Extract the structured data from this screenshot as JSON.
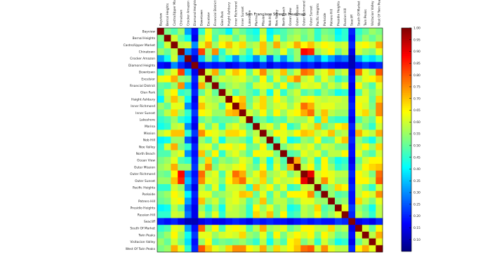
{
  "chart_data": {
    "type": "heatmap",
    "title": "San Francisco Streets Heatmap",
    "xlabel": "",
    "ylabel": "",
    "labels": [
      "Bayview",
      "Bernal Heights",
      "Castro/Upper Market",
      "Chinatown",
      "Crocker Amazon",
      "Diamond Heights",
      "Downtown",
      "Excelsior",
      "Financial District",
      "Glen Park",
      "Haight Ashbury",
      "Inner Richmond",
      "Inner Sunset",
      "Lakeshore",
      "Marina",
      "Mission",
      "Nob Hill",
      "Noe Valley",
      "North Beach",
      "Ocean View",
      "Outer Mission",
      "Outer Richmond",
      "Outer Sunset",
      "Pacific Heights",
      "Parkside",
      "Potrero Hill",
      "Presidio Heights",
      "Russian Hill",
      "Seacliff",
      "South Of Market",
      "Twin Peaks",
      "Visitacion Valley",
      "West Of Twin Peaks"
    ],
    "colorbar": {
      "min": 0.05,
      "max": 1.0,
      "ticks": [
        "1.00",
        "0.95",
        "0.90",
        "0.85",
        "0.80",
        "0.75",
        "0.70",
        "0.65",
        "0.60",
        "0.55",
        "0.50",
        "0.45",
        "0.40",
        "0.35",
        "0.30",
        "0.25",
        "0.20",
        "0.15",
        "0.10"
      ],
      "tick_values": [
        1.0,
        0.95,
        0.9,
        0.85,
        0.8,
        0.75,
        0.7,
        0.65,
        0.6,
        0.55,
        0.5,
        0.45,
        0.4,
        0.35,
        0.3,
        0.25,
        0.2,
        0.15,
        0.1
      ],
      "colormap": "jet"
    },
    "values": [
      [
        1.0,
        0.52,
        0.48,
        0.55,
        0.32,
        0.18,
        0.45,
        0.62,
        0.5,
        0.48,
        0.4,
        0.55,
        0.5,
        0.45,
        0.42,
        0.58,
        0.4,
        0.45,
        0.48,
        0.52,
        0.55,
        0.52,
        0.55,
        0.45,
        0.52,
        0.5,
        0.4,
        0.45,
        0.2,
        0.45,
        0.5,
        0.55,
        0.52
      ],
      [
        0.52,
        1.0,
        0.6,
        0.5,
        0.42,
        0.15,
        0.55,
        0.65,
        0.48,
        0.6,
        0.58,
        0.5,
        0.58,
        0.48,
        0.45,
        0.62,
        0.42,
        0.6,
        0.48,
        0.55,
        0.58,
        0.5,
        0.55,
        0.45,
        0.55,
        0.52,
        0.42,
        0.45,
        0.18,
        0.48,
        0.55,
        0.5,
        0.55
      ],
      [
        0.48,
        0.6,
        1.0,
        0.58,
        0.6,
        0.3,
        0.62,
        0.72,
        0.55,
        0.65,
        0.7,
        0.62,
        0.68,
        0.55,
        0.58,
        0.7,
        0.55,
        0.72,
        0.58,
        0.62,
        0.72,
        0.65,
        0.7,
        0.6,
        0.65,
        0.62,
        0.58,
        0.6,
        0.2,
        0.62,
        0.65,
        0.6,
        0.72
      ],
      [
        0.55,
        0.5,
        0.58,
        1.0,
        0.3,
        0.2,
        0.82,
        0.55,
        0.75,
        0.45,
        0.58,
        0.62,
        0.55,
        0.45,
        0.6,
        0.7,
        0.55,
        0.52,
        0.62,
        0.48,
        0.55,
        0.88,
        0.85,
        0.55,
        0.6,
        0.65,
        0.5,
        0.58,
        0.15,
        0.6,
        0.55,
        0.52,
        0.62
      ],
      [
        0.32,
        0.42,
        0.6,
        0.3,
        1.0,
        0.12,
        0.35,
        0.52,
        0.35,
        0.48,
        0.42,
        0.3,
        0.45,
        0.4,
        0.3,
        0.45,
        0.25,
        0.45,
        0.3,
        0.45,
        0.55,
        0.3,
        0.35,
        0.28,
        0.4,
        0.32,
        0.25,
        0.28,
        0.1,
        0.32,
        0.42,
        0.38,
        0.45
      ],
      [
        0.18,
        0.15,
        0.3,
        0.2,
        0.12,
        1.0,
        0.15,
        0.2,
        0.18,
        0.2,
        0.15,
        0.18,
        0.22,
        0.18,
        0.15,
        0.22,
        0.15,
        0.2,
        0.18,
        0.2,
        0.22,
        0.18,
        0.2,
        0.15,
        0.2,
        0.18,
        0.15,
        0.15,
        0.1,
        0.18,
        0.22,
        0.18,
        0.2
      ],
      [
        0.45,
        0.55,
        0.62,
        0.82,
        0.35,
        0.15,
        1.0,
        0.6,
        0.72,
        0.5,
        0.62,
        0.7,
        0.65,
        0.5,
        0.62,
        0.75,
        0.55,
        0.6,
        0.7,
        0.52,
        0.6,
        0.78,
        0.75,
        0.58,
        0.62,
        0.7,
        0.55,
        0.6,
        0.15,
        0.78,
        0.62,
        0.55,
        0.8
      ],
      [
        0.62,
        0.65,
        0.72,
        0.55,
        0.52,
        0.2,
        0.6,
        1.0,
        0.55,
        0.6,
        0.58,
        0.6,
        0.62,
        0.55,
        0.5,
        0.65,
        0.48,
        0.62,
        0.52,
        0.68,
        0.75,
        0.58,
        0.62,
        0.5,
        0.62,
        0.55,
        0.45,
        0.5,
        0.18,
        0.55,
        0.62,
        0.65,
        0.7
      ],
      [
        0.5,
        0.48,
        0.55,
        0.75,
        0.35,
        0.18,
        0.72,
        0.55,
        1.0,
        0.5,
        0.55,
        0.58,
        0.55,
        0.48,
        0.6,
        0.62,
        0.6,
        0.5,
        0.65,
        0.48,
        0.52,
        0.62,
        0.6,
        0.62,
        0.52,
        0.6,
        0.55,
        0.62,
        0.15,
        0.65,
        0.55,
        0.48,
        0.62
      ],
      [
        0.48,
        0.6,
        0.65,
        0.45,
        0.48,
        0.2,
        0.5,
        0.6,
        0.5,
        1.0,
        0.58,
        0.48,
        0.55,
        0.5,
        0.45,
        0.58,
        0.42,
        0.62,
        0.45,
        0.55,
        0.6,
        0.48,
        0.52,
        0.45,
        0.55,
        0.5,
        0.42,
        0.45,
        0.15,
        0.48,
        0.6,
        0.52,
        0.58
      ],
      [
        0.4,
        0.58,
        0.7,
        0.58,
        0.42,
        0.15,
        0.62,
        0.58,
        0.55,
        0.58,
        1.0,
        0.65,
        0.7,
        0.5,
        0.58,
        0.68,
        0.55,
        0.65,
        0.58,
        0.52,
        0.58,
        0.62,
        0.65,
        0.6,
        0.58,
        0.6,
        0.6,
        0.58,
        0.18,
        0.62,
        0.62,
        0.5,
        0.68
      ],
      [
        0.55,
        0.5,
        0.62,
        0.62,
        0.3,
        0.18,
        0.7,
        0.6,
        0.58,
        0.48,
        0.65,
        1.0,
        0.72,
        0.52,
        0.62,
        0.68,
        0.55,
        0.6,
        0.62,
        0.55,
        0.62,
        0.78,
        0.72,
        0.6,
        0.62,
        0.62,
        0.58,
        0.58,
        0.2,
        0.65,
        0.6,
        0.52,
        0.75
      ],
      [
        0.5,
        0.58,
        0.68,
        0.55,
        0.45,
        0.22,
        0.65,
        0.62,
        0.55,
        0.55,
        0.7,
        0.72,
        1.0,
        0.6,
        0.55,
        0.65,
        0.52,
        0.65,
        0.55,
        0.62,
        0.65,
        0.72,
        0.78,
        0.58,
        0.7,
        0.58,
        0.55,
        0.55,
        0.18,
        0.62,
        0.68,
        0.55,
        0.75
      ],
      [
        0.45,
        0.48,
        0.55,
        0.45,
        0.4,
        0.18,
        0.5,
        0.55,
        0.48,
        0.5,
        0.5,
        0.52,
        0.6,
        1.0,
        0.48,
        0.52,
        0.45,
        0.5,
        0.48,
        0.58,
        0.55,
        0.55,
        0.62,
        0.45,
        0.68,
        0.48,
        0.45,
        0.45,
        0.15,
        0.48,
        0.55,
        0.5,
        0.65
      ],
      [
        0.42,
        0.45,
        0.58,
        0.6,
        0.3,
        0.15,
        0.62,
        0.5,
        0.6,
        0.45,
        0.58,
        0.62,
        0.55,
        0.48,
        1.0,
        0.58,
        0.62,
        0.52,
        0.65,
        0.45,
        0.5,
        0.62,
        0.58,
        0.7,
        0.5,
        0.55,
        0.65,
        0.68,
        0.2,
        0.58,
        0.52,
        0.45,
        0.6
      ],
      [
        0.58,
        0.62,
        0.7,
        0.7,
        0.45,
        0.22,
        0.75,
        0.65,
        0.62,
        0.58,
        0.68,
        0.68,
        0.65,
        0.52,
        0.58,
        1.0,
        0.55,
        0.65,
        0.62,
        0.58,
        0.65,
        0.7,
        0.68,
        0.58,
        0.62,
        0.7,
        0.55,
        0.58,
        0.18,
        0.72,
        0.62,
        0.58,
        0.72
      ],
      [
        0.4,
        0.42,
        0.55,
        0.55,
        0.25,
        0.15,
        0.55,
        0.48,
        0.6,
        0.42,
        0.55,
        0.55,
        0.52,
        0.45,
        0.62,
        0.55,
        1.0,
        0.48,
        0.62,
        0.42,
        0.45,
        0.55,
        0.52,
        0.65,
        0.48,
        0.5,
        0.62,
        0.7,
        0.2,
        0.55,
        0.48,
        0.42,
        0.55
      ],
      [
        0.45,
        0.6,
        0.72,
        0.52,
        0.45,
        0.2,
        0.6,
        0.62,
        0.5,
        0.62,
        0.65,
        0.6,
        0.65,
        0.5,
        0.52,
        0.65,
        0.48,
        1.0,
        0.52,
        0.58,
        0.62,
        0.58,
        0.62,
        0.52,
        0.6,
        0.58,
        0.52,
        0.52,
        0.18,
        0.58,
        0.65,
        0.55,
        0.68
      ],
      [
        0.48,
        0.48,
        0.58,
        0.62,
        0.3,
        0.18,
        0.7,
        0.52,
        0.65,
        0.45,
        0.58,
        0.62,
        0.55,
        0.48,
        0.65,
        0.62,
        0.62,
        0.52,
        1.0,
        0.48,
        0.5,
        0.62,
        0.58,
        0.62,
        0.5,
        0.58,
        0.58,
        0.65,
        0.18,
        0.62,
        0.52,
        0.48,
        0.6
      ],
      [
        0.52,
        0.55,
        0.62,
        0.48,
        0.45,
        0.2,
        0.52,
        0.68,
        0.48,
        0.55,
        0.52,
        0.55,
        0.62,
        0.58,
        0.45,
        0.58,
        0.42,
        0.58,
        0.48,
        1.0,
        0.72,
        0.52,
        0.6,
        0.45,
        0.65,
        0.5,
        0.42,
        0.45,
        0.15,
        0.5,
        0.6,
        0.65,
        0.65
      ],
      [
        0.55,
        0.58,
        0.72,
        0.55,
        0.55,
        0.22,
        0.6,
        0.75,
        0.52,
        0.6,
        0.58,
        0.62,
        0.65,
        0.55,
        0.5,
        0.65,
        0.45,
        0.62,
        0.5,
        0.72,
        1.0,
        0.58,
        0.65,
        0.48,
        0.65,
        0.55,
        0.45,
        0.48,
        0.18,
        0.55,
        0.65,
        0.68,
        0.7
      ],
      [
        0.52,
        0.5,
        0.65,
        0.88,
        0.3,
        0.18,
        0.78,
        0.58,
        0.62,
        0.48,
        0.62,
        0.78,
        0.72,
        0.55,
        0.62,
        0.7,
        0.55,
        0.58,
        0.62,
        0.52,
        0.58,
        1.0,
        0.9,
        0.6,
        0.65,
        0.62,
        0.58,
        0.58,
        0.2,
        0.65,
        0.6,
        0.52,
        0.78
      ],
      [
        0.55,
        0.55,
        0.7,
        0.85,
        0.35,
        0.2,
        0.75,
        0.62,
        0.6,
        0.52,
        0.65,
        0.72,
        0.78,
        0.62,
        0.58,
        0.68,
        0.52,
        0.62,
        0.58,
        0.6,
        0.65,
        0.9,
        1.0,
        0.58,
        0.75,
        0.62,
        0.55,
        0.55,
        0.18,
        0.65,
        0.65,
        0.58,
        0.8
      ],
      [
        0.45,
        0.45,
        0.6,
        0.55,
        0.28,
        0.15,
        0.58,
        0.5,
        0.62,
        0.45,
        0.6,
        0.6,
        0.58,
        0.45,
        0.7,
        0.58,
        0.65,
        0.52,
        0.62,
        0.45,
        0.48,
        0.6,
        0.58,
        1.0,
        0.5,
        0.55,
        0.68,
        0.65,
        0.2,
        0.58,
        0.52,
        0.45,
        0.6
      ],
      [
        0.52,
        0.55,
        0.65,
        0.6,
        0.4,
        0.2,
        0.62,
        0.62,
        0.52,
        0.55,
        0.58,
        0.62,
        0.7,
        0.68,
        0.5,
        0.62,
        0.48,
        0.6,
        0.5,
        0.65,
        0.65,
        0.65,
        0.75,
        0.5,
        1.0,
        0.55,
        0.48,
        0.5,
        0.18,
        0.58,
        0.65,
        0.6,
        0.75
      ],
      [
        0.5,
        0.52,
        0.62,
        0.65,
        0.32,
        0.18,
        0.7,
        0.55,
        0.6,
        0.5,
        0.6,
        0.62,
        0.58,
        0.48,
        0.55,
        0.7,
        0.5,
        0.58,
        0.58,
        0.5,
        0.55,
        0.62,
        0.62,
        0.55,
        0.55,
        1.0,
        0.52,
        0.55,
        0.18,
        0.68,
        0.58,
        0.52,
        0.62
      ],
      [
        0.4,
        0.42,
        0.58,
        0.5,
        0.25,
        0.15,
        0.55,
        0.45,
        0.55,
        0.42,
        0.6,
        0.58,
        0.55,
        0.45,
        0.65,
        0.55,
        0.62,
        0.52,
        0.58,
        0.42,
        0.45,
        0.58,
        0.55,
        0.68,
        0.48,
        0.52,
        1.0,
        0.62,
        0.22,
        0.55,
        0.5,
        0.42,
        0.58
      ],
      [
        0.45,
        0.45,
        0.6,
        0.58,
        0.28,
        0.15,
        0.6,
        0.5,
        0.62,
        0.45,
        0.58,
        0.58,
        0.55,
        0.45,
        0.68,
        0.58,
        0.7,
        0.52,
        0.65,
        0.45,
        0.48,
        0.58,
        0.55,
        0.65,
        0.5,
        0.55,
        0.62,
        1.0,
        0.2,
        0.58,
        0.52,
        0.45,
        0.58
      ],
      [
        0.2,
        0.18,
        0.2,
        0.15,
        0.1,
        0.1,
        0.15,
        0.18,
        0.15,
        0.15,
        0.18,
        0.2,
        0.18,
        0.15,
        0.2,
        0.18,
        0.2,
        0.18,
        0.18,
        0.15,
        0.18,
        0.2,
        0.18,
        0.2,
        0.18,
        0.18,
        0.22,
        0.2,
        1.0,
        0.15,
        0.18,
        0.15,
        0.2
      ],
      [
        0.45,
        0.48,
        0.62,
        0.6,
        0.32,
        0.18,
        0.78,
        0.55,
        0.65,
        0.48,
        0.62,
        0.65,
        0.62,
        0.48,
        0.58,
        0.72,
        0.55,
        0.58,
        0.62,
        0.5,
        0.55,
        0.65,
        0.65,
        0.58,
        0.58,
        0.68,
        0.55,
        0.58,
        0.15,
        1.0,
        0.6,
        0.5,
        0.65
      ],
      [
        0.5,
        0.55,
        0.65,
        0.55,
        0.42,
        0.22,
        0.62,
        0.62,
        0.55,
        0.6,
        0.62,
        0.6,
        0.68,
        0.55,
        0.52,
        0.62,
        0.48,
        0.65,
        0.52,
        0.6,
        0.65,
        0.6,
        0.65,
        0.52,
        0.65,
        0.58,
        0.5,
        0.52,
        0.18,
        0.6,
        1.0,
        0.58,
        0.72
      ],
      [
        0.55,
        0.5,
        0.6,
        0.52,
        0.38,
        0.18,
        0.55,
        0.65,
        0.48,
        0.52,
        0.5,
        0.52,
        0.55,
        0.5,
        0.45,
        0.58,
        0.42,
        0.55,
        0.48,
        0.65,
        0.68,
        0.52,
        0.58,
        0.45,
        0.6,
        0.52,
        0.42,
        0.45,
        0.15,
        0.5,
        0.58,
        1.0,
        0.62
      ],
      [
        0.52,
        0.55,
        0.72,
        0.62,
        0.45,
        0.2,
        0.8,
        0.7,
        0.62,
        0.58,
        0.68,
        0.75,
        0.75,
        0.65,
        0.6,
        0.72,
        0.55,
        0.68,
        0.6,
        0.65,
        0.7,
        0.78,
        0.8,
        0.6,
        0.75,
        0.62,
        0.58,
        0.58,
        0.2,
        0.65,
        0.72,
        0.62,
        1.0
      ]
    ]
  }
}
